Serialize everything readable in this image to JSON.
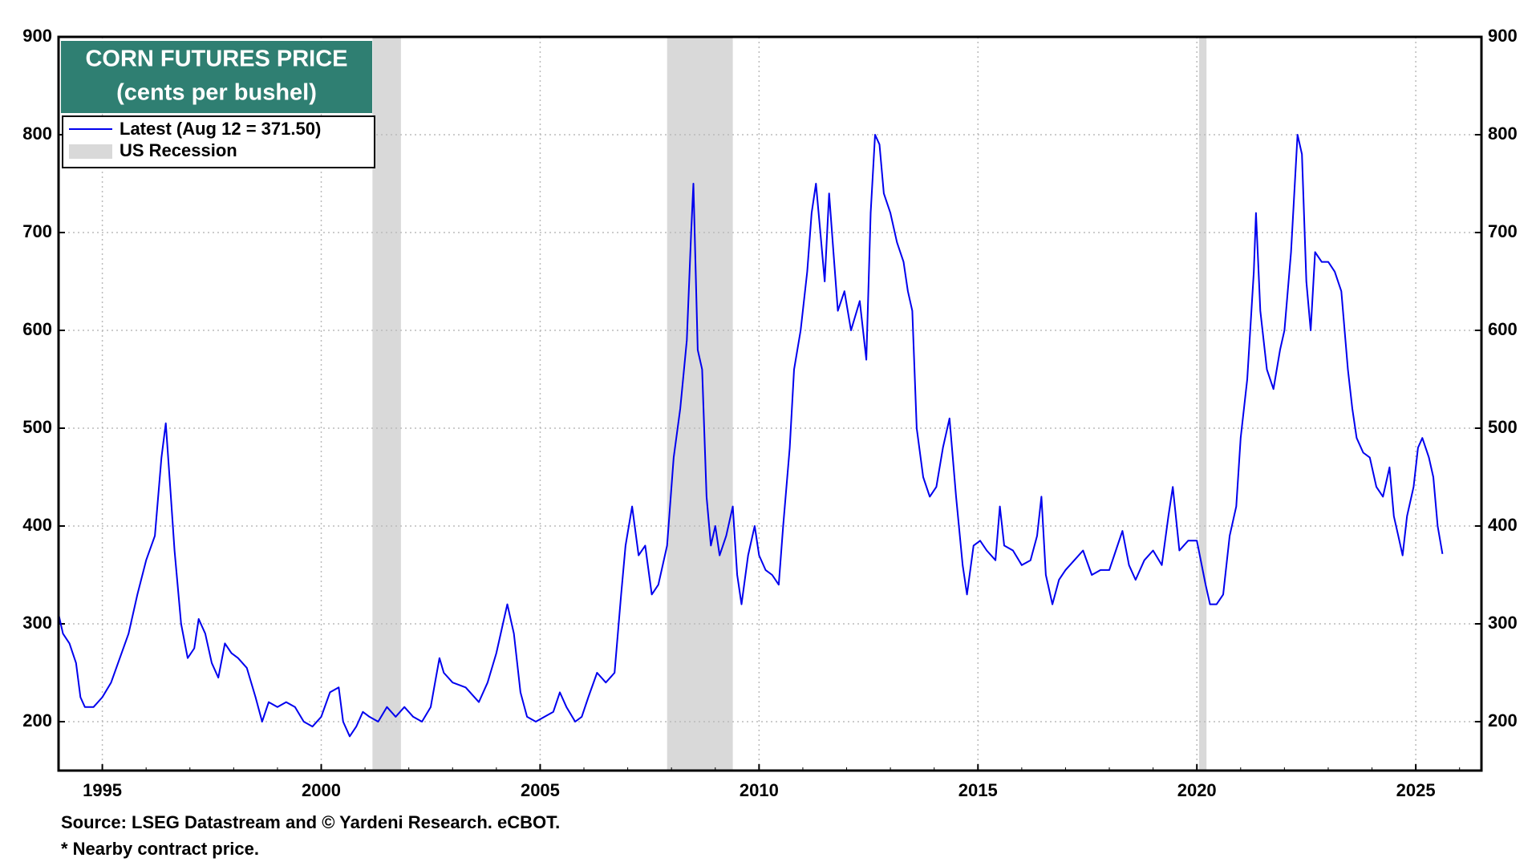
{
  "chart_data": {
    "type": "line",
    "title": "CORN FUTURES PRICE",
    "subtitle": "(cents per bushel)",
    "x": [
      1994.0,
      1994.1,
      1994.25,
      1994.4,
      1994.5,
      1994.6,
      1994.8,
      1995.0,
      1995.2,
      1995.4,
      1995.6,
      1995.8,
      1996.0,
      1996.2,
      1996.35,
      1996.45,
      1996.55,
      1996.65,
      1996.8,
      1996.95,
      1997.1,
      1997.2,
      1997.35,
      1997.5,
      1997.65,
      1997.8,
      1997.95,
      1998.1,
      1998.3,
      1998.5,
      1998.65,
      1998.8,
      1999.0,
      1999.2,
      1999.4,
      1999.6,
      1999.8,
      2000.0,
      2000.2,
      2000.4,
      2000.5,
      2000.65,
      2000.8,
      2000.95,
      2001.1,
      2001.3,
      2001.5,
      2001.7,
      2001.9,
      2002.1,
      2002.3,
      2002.5,
      2002.6,
      2002.7,
      2002.8,
      2003.0,
      2003.3,
      2003.6,
      2003.8,
      2004.0,
      2004.15,
      2004.25,
      2004.4,
      2004.55,
      2004.7,
      2004.9,
      2005.1,
      2005.3,
      2005.45,
      2005.6,
      2005.8,
      2005.95,
      2006.1,
      2006.3,
      2006.5,
      2006.7,
      2006.85,
      2006.95,
      2007.1,
      2007.25,
      2007.4,
      2007.55,
      2007.7,
      2007.9,
      2008.05,
      2008.2,
      2008.35,
      2008.45,
      2008.5,
      2008.6,
      2008.7,
      2008.8,
      2008.9,
      2009.0,
      2009.1,
      2009.25,
      2009.4,
      2009.5,
      2009.6,
      2009.75,
      2009.9,
      2010.0,
      2010.15,
      2010.3,
      2010.45,
      2010.55,
      2010.7,
      2010.8,
      2010.95,
      2011.1,
      2011.2,
      2011.3,
      2011.4,
      2011.5,
      2011.6,
      2011.7,
      2011.8,
      2011.95,
      2012.1,
      2012.3,
      2012.45,
      2012.55,
      2012.65,
      2012.75,
      2012.85,
      2013.0,
      2013.15,
      2013.3,
      2013.4,
      2013.5,
      2013.6,
      2013.75,
      2013.9,
      2014.05,
      2014.2,
      2014.35,
      2014.5,
      2014.65,
      2014.75,
      2014.9,
      2015.05,
      2015.2,
      2015.4,
      2015.5,
      2015.6,
      2015.8,
      2016.0,
      2016.2,
      2016.35,
      2016.45,
      2016.55,
      2016.7,
      2016.85,
      2017.0,
      2017.2,
      2017.4,
      2017.6,
      2017.8,
      2018.0,
      2018.15,
      2018.3,
      2018.45,
      2018.6,
      2018.8,
      2019.0,
      2019.2,
      2019.35,
      2019.45,
      2019.6,
      2019.8,
      2020.0,
      2020.2,
      2020.3,
      2020.45,
      2020.6,
      2020.75,
      2020.9,
      2021.0,
      2021.15,
      2021.3,
      2021.35,
      2021.45,
      2021.6,
      2021.75,
      2021.9,
      2022.0,
      2022.15,
      2022.3,
      2022.4,
      2022.5,
      2022.6,
      2022.7,
      2022.85,
      2023.0,
      2023.15,
      2023.3,
      2023.45,
      2023.55,
      2023.65,
      2023.8,
      2023.95,
      2024.1,
      2024.25,
      2024.4,
      2024.5,
      2024.6,
      2024.7,
      2024.8,
      2024.95,
      2025.05,
      2025.15,
      2025.3,
      2025.4,
      2025.5,
      2025.61
    ],
    "series": [
      {
        "name": "Latest (Aug 12 = 371.50)",
        "color": "#0000ee",
        "values": [
          310,
          290,
          280,
          260,
          225,
          215,
          215,
          225,
          240,
          265,
          290,
          330,
          365,
          390,
          470,
          505,
          440,
          375,
          300,
          265,
          275,
          305,
          290,
          260,
          245,
          280,
          270,
          265,
          255,
          225,
          200,
          220,
          215,
          220,
          215,
          200,
          195,
          205,
          230,
          235,
          200,
          185,
          195,
          210,
          205,
          200,
          215,
          205,
          215,
          205,
          200,
          215,
          240,
          265,
          250,
          240,
          235,
          220,
          240,
          270,
          300,
          320,
          290,
          230,
          205,
          200,
          205,
          210,
          230,
          215,
          200,
          205,
          225,
          250,
          240,
          250,
          330,
          380,
          420,
          370,
          380,
          330,
          340,
          380,
          470,
          520,
          590,
          700,
          750,
          580,
          560,
          430,
          380,
          400,
          370,
          390,
          420,
          350,
          320,
          370,
          400,
          370,
          355,
          350,
          340,
          400,
          480,
          560,
          600,
          660,
          720,
          750,
          700,
          650,
          740,
          680,
          620,
          640,
          600,
          630,
          570,
          720,
          800,
          790,
          740,
          720,
          690,
          670,
          640,
          620,
          500,
          450,
          430,
          440,
          480,
          510,
          430,
          360,
          330,
          380,
          385,
          375,
          365,
          420,
          380,
          375,
          360,
          365,
          390,
          430,
          350,
          320,
          345,
          355,
          365,
          375,
          350,
          355,
          355,
          375,
          395,
          360,
          345,
          365,
          375,
          360,
          410,
          440,
          375,
          385,
          385,
          340,
          320,
          320,
          330,
          390,
          420,
          490,
          550,
          660,
          720,
          620,
          560,
          540,
          580,
          600,
          680,
          800,
          780,
          650,
          600,
          680,
          670,
          670,
          660,
          640,
          560,
          520,
          490,
          475,
          470,
          440,
          430,
          460,
          410,
          390,
          370,
          410,
          440,
          480,
          490,
          470,
          450,
          400,
          371.5
        ]
      }
    ],
    "recession": {
      "name": "US Recession",
      "color": "#d9d9d9",
      "periods": [
        [
          2001.17,
          2001.82
        ],
        [
          2007.9,
          2009.4
        ],
        [
          2020.05,
          2020.22
        ]
      ]
    },
    "xlim": [
      1994.0,
      2026.5
    ],
    "ylim": [
      150,
      900
    ],
    "xticks": [
      1995,
      2000,
      2005,
      2010,
      2015,
      2020,
      2025
    ],
    "yticks": [
      200,
      300,
      400,
      500,
      600,
      700,
      800,
      900
    ],
    "grid": true,
    "notes": [
      "Source: LSEG Datastream and © Yardeni Research. eCBOT.",
      "* Nearby contract price."
    ]
  }
}
